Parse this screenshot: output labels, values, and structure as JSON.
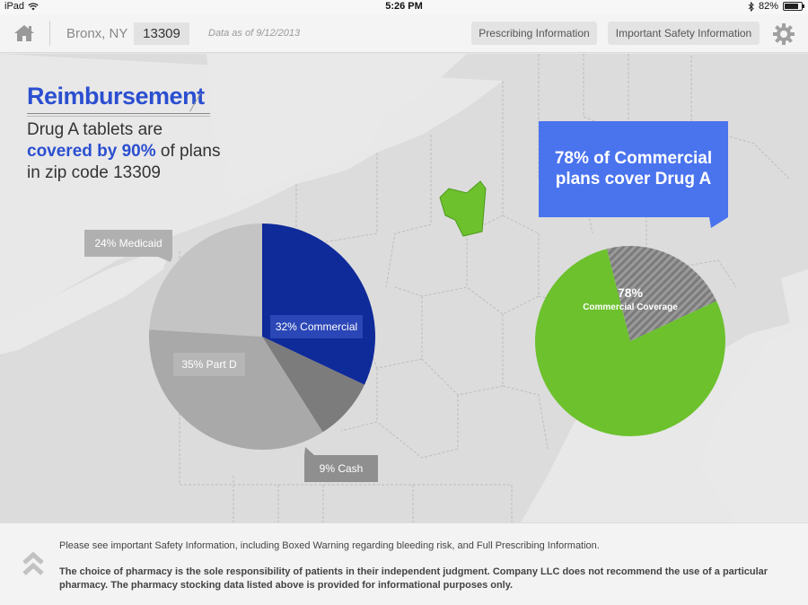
{
  "status_bar": {
    "device": "iPad",
    "time": "5:26 PM",
    "battery": "82%",
    "battery_level": 0.82
  },
  "header": {
    "location": "Bronx, NY",
    "zip": "13309",
    "data_as_of": "Data as of 9/12/2013",
    "prescribing_info_label": "Prescribing Information",
    "safety_info_label": "Important Safety  Information",
    "icons": {
      "home": "home-icon",
      "settings": "gear-icon"
    }
  },
  "content": {
    "title": "Reimbursement",
    "subtitle_line1": "Drug A tablets are",
    "subtitle_highlight": "covered by 90%",
    "subtitle_line2_rest": " of plans",
    "subtitle_line3": "in zip code 13309",
    "callout": "78% of Commercial plans cover Drug A",
    "pie2_value": "78%",
    "pie2_caption": "Commercial Coverage"
  },
  "colors": {
    "accent": "#2b4fd0",
    "commercial": "#0f2a99",
    "coverage": "#6cc12d",
    "callout": "#4a73ee"
  },
  "chart_data": [
    {
      "type": "pie",
      "slices": [
        {
          "label": "32% Commercial",
          "value": 32,
          "color": "#0f2a99"
        },
        {
          "label": "9% Cash",
          "value": 9,
          "color": "#7c7c7c"
        },
        {
          "label": "35% Part D",
          "value": 35,
          "color": "#a9a9a9"
        },
        {
          "label": "24% Medicaid",
          "value": 24,
          "color": "#c4c4c4"
        }
      ]
    },
    {
      "type": "pie",
      "slices": [
        {
          "label": "78%",
          "value": 78,
          "color": "#6cc12d"
        },
        {
          "label": "",
          "value": 22,
          "color": "#8a8a8a"
        }
      ]
    }
  ],
  "footer": {
    "line1": "Please see important Safety Information, including Boxed Warning regarding bleeding risk, and Full Prescribing Information.",
    "line2": "The choice of pharmacy is the sole responsibility of patients in their independent judgment. Company LLC does not recommend the use of a particular pharmacy. The pharmacy stocking data listed above is provided for informational purposes only."
  }
}
